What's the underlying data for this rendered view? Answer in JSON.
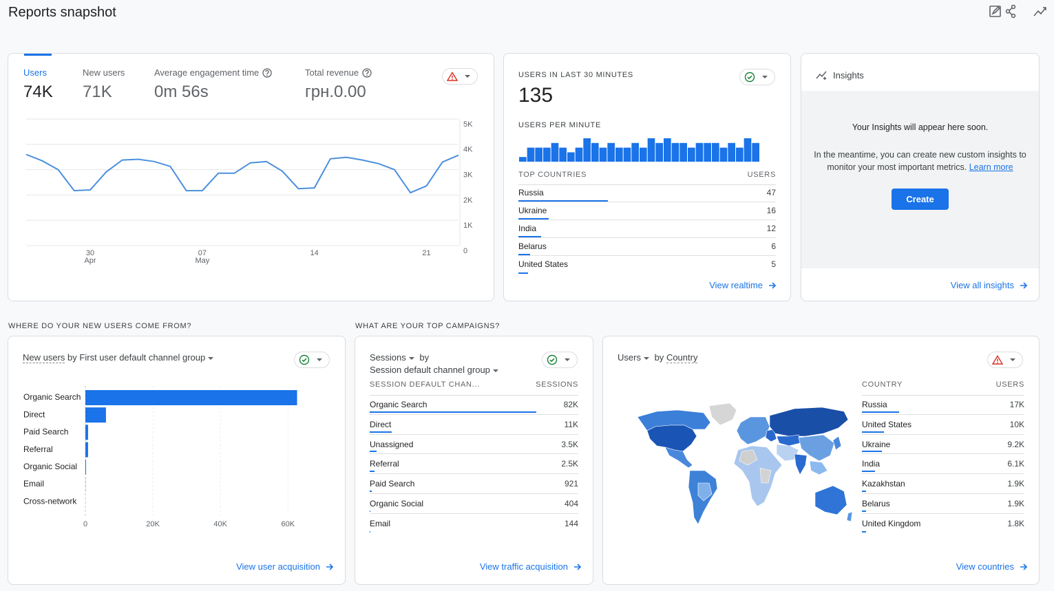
{
  "header": {
    "title": "Reports snapshot"
  },
  "overview": {
    "tabs": [
      {
        "label": "Users",
        "value": "74K"
      },
      {
        "label": "New users",
        "value": "71K"
      },
      {
        "label": "Average engagement time",
        "value": "0m 56s"
      },
      {
        "label": "Total revenue",
        "value": "грн.0.00"
      }
    ],
    "chart": {
      "type": "line",
      "categories": [
        null,
        null,
        null,
        null,
        "30",
        null,
        null,
        null,
        null,
        null,
        null,
        "07",
        null,
        null,
        null,
        null,
        null,
        null,
        "14",
        null,
        null,
        null,
        null,
        null,
        null,
        "21",
        null,
        null
      ],
      "month_labels": [
        null,
        null,
        null,
        null,
        "Apr",
        null,
        null,
        null,
        null,
        null,
        null,
        "May",
        null,
        null,
        null,
        null,
        null,
        null,
        null,
        null,
        null,
        null,
        null,
        null,
        null,
        null,
        null,
        null
      ],
      "values": [
        3600,
        3350,
        3000,
        2170,
        2200,
        2910,
        3380,
        3410,
        3320,
        3130,
        2170,
        2170,
        2860,
        2860,
        3270,
        3320,
        2940,
        2250,
        2280,
        3430,
        3490,
        3380,
        3240,
        3000,
        2090,
        2360,
        3300,
        3570
      ],
      "color": "#4a8fdc",
      "ylim": [
        0,
        5000
      ],
      "yticks": [
        0,
        {
          "value": 1000,
          "label": "1K"
        },
        {
          "value": 2000,
          "label": "2K"
        },
        {
          "value": 3000,
          "label": "3K"
        },
        {
          "value": 4000,
          "label": "4K"
        },
        {
          "value": 5000,
          "label": "5K"
        }
      ],
      "grid": true
    }
  },
  "realtime": {
    "title": "USERS IN LAST 30 MINUTES",
    "value": 135,
    "subtitle": "USERS PER MINUTE",
    "chart": {
      "type": "bar",
      "values": [
        1,
        3,
        3,
        3,
        4,
        3,
        2,
        3,
        5,
        4,
        3,
        4,
        3,
        3,
        4,
        3,
        5,
        4,
        5,
        4,
        4,
        3,
        4,
        4,
        4,
        3,
        4,
        3,
        5,
        4
      ],
      "color": "#1a73e8"
    },
    "table": {
      "headers": [
        "TOP COUNTRIES",
        "USERS"
      ],
      "names": [
        "Russia",
        "Ukraine",
        "India",
        "Belarus",
        "United States"
      ],
      "values": [
        47,
        16,
        12,
        6,
        5
      ]
    },
    "link": "View realtime"
  },
  "insights": {
    "title": "Insights",
    "heading": "Your Insights will appear here soon.",
    "text": "In the meantime, you can create new custom insights to monitor your most important metrics.",
    "link_text": "Learn more",
    "button": "Create",
    "link": "View all insights"
  },
  "acquisition": {
    "section": "WHERE DO YOUR NEW USERS COME FROM?",
    "metric": "New users",
    "joiner": "by",
    "dimension": "First user default channel group",
    "chart": {
      "type": "bar",
      "orientation": "horizontal",
      "categories": [
        "Organic Search",
        "Direct",
        "Paid Search",
        "Referral",
        "Organic Social",
        "Email",
        "Cross-network"
      ],
      "values": [
        62700,
        6100,
        800,
        800,
        200,
        50,
        10
      ],
      "color": "#1a73e8",
      "xlim": [
        0,
        63000
      ],
      "xticks": [
        0,
        {
          "value": 20000,
          "label": "20K"
        },
        {
          "value": 40000,
          "label": "40K"
        },
        {
          "value": 60000,
          "label": "60K"
        }
      ]
    },
    "link": "View user acquisition"
  },
  "campaigns": {
    "section": "WHAT ARE YOUR TOP CAMPAIGNS?",
    "metric": "Sessions",
    "joiner": "by",
    "dimension": "Session default channel group",
    "table": {
      "headers": [
        "SESSION DEFAULT CHAN...",
        "SESSIONS"
      ],
      "names": [
        "Organic Search",
        "Direct",
        "Unassigned",
        "Referral",
        "Paid Search",
        "Organic Social",
        "Email"
      ],
      "values": [
        82000,
        11000,
        3500,
        2500,
        921,
        404,
        144
      ],
      "value_labels": [
        "82K",
        "11K",
        "3.5K",
        "2.5K",
        "921",
        "404",
        "144"
      ]
    },
    "link": "View traffic acquisition"
  },
  "countries": {
    "metric": "Users",
    "joiner": "by",
    "dimension": "Country",
    "table": {
      "headers": [
        "COUNTRY",
        "USERS"
      ],
      "names": [
        "Russia",
        "United States",
        "Ukraine",
        "India",
        "Kazakhstan",
        "Belarus",
        "United Kingdom"
      ],
      "values": [
        17000,
        10000,
        9200,
        6100,
        1900,
        1900,
        1800
      ],
      "value_labels": [
        "17K",
        "10K",
        "9.2K",
        "6.1K",
        "1.9K",
        "1.9K",
        "1.8K"
      ]
    },
    "link": "View countries"
  }
}
